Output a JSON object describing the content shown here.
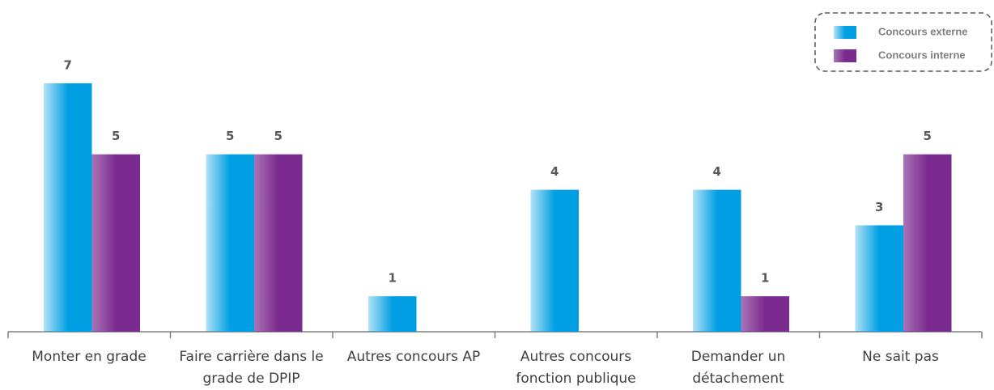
{
  "chart_data": {
    "type": "bar",
    "categories": [
      "Monter en grade",
      "Faire carrière dans le grade de DPIP",
      "Autres concours AP",
      "Autres concours fonction publique",
      "Demander un détachement",
      "Ne sait pas"
    ],
    "series": [
      {
        "name": "Concours externe",
        "color": "#009fe3",
        "values": [
          7,
          5,
          1,
          4,
          4,
          3
        ]
      },
      {
        "name": "Concours interne",
        "color": "#7b2a8f",
        "values": [
          5,
          5,
          null,
          null,
          1,
          5
        ]
      }
    ],
    "legend": "top-right"
  }
}
